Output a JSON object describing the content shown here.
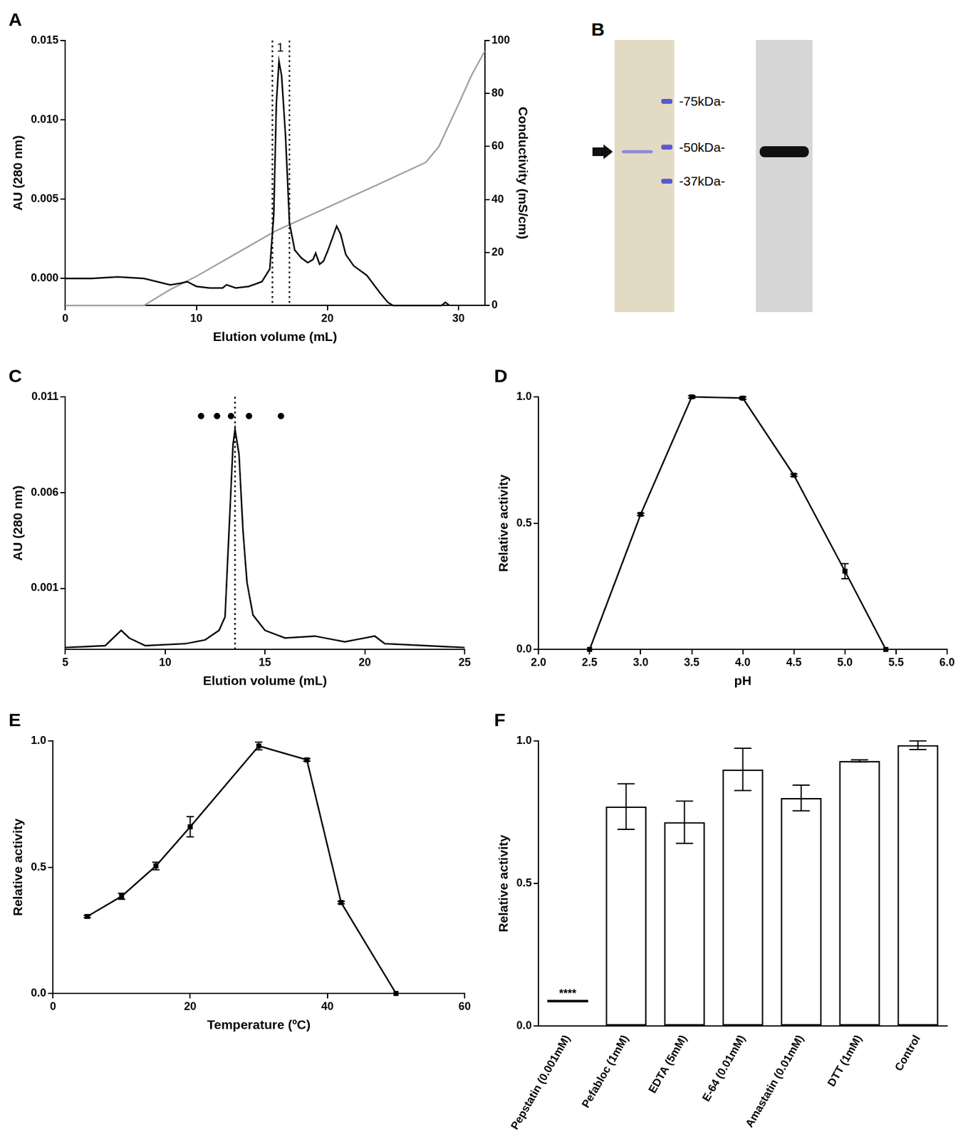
{
  "chart_data": [
    {
      "type": "line",
      "title": "A",
      "x_label": "Elution volume (mL)",
      "y_label": "AU (280 nm)",
      "y2_label": "Conductivity (mS/cm)",
      "xlim": [
        0,
        32
      ],
      "xticks": [
        0,
        10,
        20,
        30
      ],
      "ylim": [
        -0.0017,
        0.015
      ],
      "yticks": [
        {
          "value": 0,
          "label": "0.000"
        },
        0.005,
        {
          "value": 0.01,
          "label": "0.010"
        },
        0.015
      ],
      "y2lim": [
        0,
        100
      ],
      "y2ticks": [
        0,
        20,
        40,
        60,
        80,
        100
      ],
      "grid": false,
      "series": [
        {
          "color": "#000000",
          "x": [
            0,
            2,
            4,
            6,
            7,
            8,
            8.8,
            9.3,
            10,
            11,
            12,
            12.3,
            13,
            14,
            15,
            15.6,
            15.9,
            16.1,
            16.3,
            16.5,
            16.8,
            17.1,
            17.5,
            18,
            18.5,
            18.9,
            19.1,
            19.4,
            19.7,
            20,
            20.4,
            20.7,
            21,
            21.4,
            22,
            23,
            24,
            24.6,
            25,
            28.7,
            29,
            29.3
          ],
          "values": [
            0,
            0,
            0.0001,
            0,
            -0.0002,
            -0.0004,
            -0.0003,
            -0.0002,
            -0.0005,
            -0.0006,
            -0.0006,
            -0.0004,
            -0.0006,
            -0.0005,
            -0.0002,
            0.0006,
            0.004,
            0.011,
            0.0137,
            0.0128,
            0.009,
            0.0035,
            0.0018,
            0.0013,
            0.001,
            0.0012,
            0.0016,
            0.0009,
            0.0011,
            0.0017,
            0.0026,
            0.0033,
            0.0028,
            0.0015,
            0.0008,
            0.0002,
            -0.0009,
            -0.0015,
            -0.0017,
            -0.0017,
            -0.0015,
            -0.0017
          ]
        },
        {
          "color": "#a0a0a0",
          "axis": "y2",
          "x": [
            0,
            6,
            7,
            8,
            10,
            13,
            16,
            20,
            24,
            27.5,
            28.5,
            30,
            31,
            32
          ],
          "values": [
            0,
            0,
            3,
            6,
            11,
            19.5,
            28,
            37,
            46,
            54,
            60,
            76,
            87,
            96
          ]
        }
      ],
      "annotations": [
        {
          "x": 15.8
        },
        {
          "x": 17.1
        },
        {
          "x": 16.4,
          "text": "1"
        }
      ]
    },
    {
      "type": "gel",
      "title": "B",
      "yticks": [
        {
          "value": 75,
          "label": "-75kDa-"
        },
        {
          "value": 50,
          "label": "-50kDa-"
        },
        {
          "value": 37,
          "label": "-37kDa-"
        }
      ],
      "values": [
        48
      ]
    },
    {
      "type": "line",
      "title": "C",
      "x_label": "Elution volume (mL)",
      "y_label": "AU (280 nm)",
      "xlim": [
        5,
        25
      ],
      "xticks": [
        5,
        10,
        15,
        20,
        25
      ],
      "ylim": [
        -0.0022,
        0.011
      ],
      "yticks": [
        0.001,
        0.006,
        0.011
      ],
      "grid": false,
      "series": [
        {
          "color": "#000000",
          "x": [
            5,
            7,
            7.8,
            8.2,
            9,
            11,
            12,
            12.7,
            13,
            13.2,
            13.4,
            13.5,
            13.7,
            13.9,
            14.1,
            14.4,
            15,
            16,
            17.5,
            19,
            20.5,
            21,
            25
          ],
          "values": [
            -0.0021,
            -0.002,
            -0.0012,
            -0.0016,
            -0.002,
            -0.0019,
            -0.0017,
            -0.0012,
            -0.0005,
            0.004,
            0.0085,
            0.0093,
            0.008,
            0.004,
            0.0013,
            -0.0004,
            -0.0012,
            -0.0016,
            -0.0015,
            -0.0018,
            -0.0015,
            -0.0019,
            -0.0021
          ]
        },
        {
          "color": "#000000",
          "type": "scatter",
          "marker": "circle",
          "x": [
            11.8,
            12.6,
            13.3,
            14.2,
            15.8
          ],
          "values": [
            0.01,
            0.01,
            0.01,
            0.01,
            0.01
          ]
        }
      ],
      "annotations": [
        {
          "x": 13.5
        }
      ]
    },
    {
      "type": "line",
      "title": "D",
      "x_label": "pH",
      "y_label": "Relative activity",
      "xlim": [
        2,
        6
      ],
      "xticks": [
        {
          "value": 2,
          "label": "2.0"
        },
        2.5,
        {
          "value": 3,
          "label": "3.0"
        },
        3.5,
        {
          "value": 4,
          "label": "4.0"
        },
        4.5,
        {
          "value": 5,
          "label": "5.0"
        },
        5.5,
        {
          "value": 6,
          "label": "6.0"
        }
      ],
      "ylim": [
        0,
        1
      ],
      "yticks": [
        {
          "value": 0,
          "label": "0.0"
        },
        0.5,
        {
          "value": 1,
          "label": "1.0"
        }
      ],
      "grid": false,
      "series": [
        {
          "color": "#000000",
          "marker": "square",
          "x": [
            2.5,
            3,
            3.5,
            4,
            4.5,
            5,
            5.4
          ],
          "values": [
            0,
            0.535,
            1,
            0.995,
            0.69,
            0.31,
            0
          ],
          "errors": [
            0,
            0.005,
            0.005,
            0.005,
            0.005,
            0.03,
            0
          ]
        }
      ]
    },
    {
      "type": "line",
      "title": "E",
      "x_label": "Temperature (ºC)",
      "y_label": "Relative activity",
      "xlim": [
        0,
        60
      ],
      "xticks": [
        0,
        20,
        40,
        60
      ],
      "ylim": [
        0,
        1
      ],
      "yticks": [
        {
          "value": 0,
          "label": "0.0"
        },
        0.5,
        {
          "value": 1,
          "label": "1.0"
        }
      ],
      "grid": false,
      "series": [
        {
          "color": "#000000",
          "marker": "square",
          "x": [
            5,
            10,
            15,
            20,
            30,
            37,
            42,
            50
          ],
          "values": [
            0.305,
            0.385,
            0.505,
            0.66,
            0.98,
            0.925,
            0.36,
            0
          ],
          "errors": [
            0.005,
            0.012,
            0.015,
            0.04,
            0.015,
            0.005,
            0.005,
            0
          ]
        }
      ]
    },
    {
      "type": "bar",
      "title": "F",
      "y_label": "Relative activity",
      "categories": [
        "Pepstatin (0.001mM)",
        "Pefabloc (1mM)",
        "EDTA (5mM)",
        "E-64 (0.01mM)",
        "Amastatin (0.01mM)",
        "DTT (1mM)",
        "Control"
      ],
      "values": [
        0,
        0.77,
        0.715,
        0.9,
        0.8,
        0.93,
        0.985
      ],
      "errors": [
        0,
        0.08,
        0.074,
        0.074,
        0.045,
        0.004,
        0.015
      ],
      "color": "#ffffff",
      "ylim": [
        0,
        1
      ],
      "yticks": [
        {
          "value": 0,
          "label": "0.0"
        },
        0.5,
        {
          "value": 1,
          "label": "1.0"
        }
      ],
      "grid": false,
      "annotations": [
        {
          "category": "Pepstatin (0.001mM)",
          "y": 0.088,
          "text": "****"
        }
      ]
    }
  ]
}
